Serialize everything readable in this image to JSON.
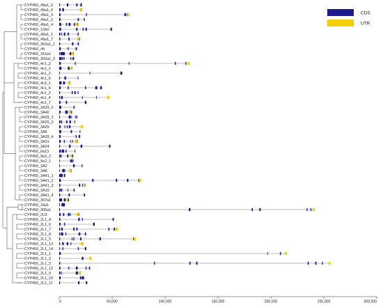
{
  "legend": [
    {
      "label": "CDS",
      "color": "#1a1a8c"
    },
    {
      "label": "UTR",
      "color": "#f5d000"
    }
  ],
  "axis": {
    "min": 0,
    "max": 300000,
    "ticks": [
      0,
      50000,
      100000,
      150000,
      200000,
      250000,
      300000
    ],
    "tick_labels": [
      "0",
      "50,000",
      "100,000",
      "150,000",
      "200,000",
      "250,000",
      "300,000"
    ]
  },
  "genes": [
    {
      "name": "CYP450_49a1_5",
      "length": 21000
    },
    {
      "name": "CYP450_49a1_6",
      "length": 21000
    },
    {
      "name": "CYP450_49a1_3",
      "length": 66000
    },
    {
      "name": "CYP450_49a1_2",
      "length": 24000
    },
    {
      "name": "CYP450_49a1_4",
      "length": 17000
    },
    {
      "name": "CYP450_12A2",
      "length": 50000
    },
    {
      "name": "CYP450_49a1_1",
      "length": 18000
    },
    {
      "name": "CYP450_49a1_7",
      "length": 19000
    },
    {
      "name": "CYP450_302a1_1",
      "length": 18000
    },
    {
      "name": "CYP450_44",
      "length": 16000
    },
    {
      "name": "CYP450_315a1",
      "length": 13000
    },
    {
      "name": "CYP450_302a1_2",
      "length": 13000
    },
    {
      "name": "CYP450_4c1_3",
      "length": 123000
    },
    {
      "name": "CYP450_4c1_1",
      "length": 12000
    },
    {
      "name": "CYP450_4c1_2",
      "length": 60000
    },
    {
      "name": "CYP450_4c1_5",
      "length": 18000
    },
    {
      "name": "CYP450_4c3_1",
      "length": 10000
    },
    {
      "name": "CYP450_4c1_6",
      "length": 40000
    },
    {
      "name": "CYP450_4c1_2",
      "length": 18000
    },
    {
      "name": "CYP450_4c1_4",
      "length": 47000
    },
    {
      "name": "CYP450_4c1_7",
      "length": 25000
    },
    {
      "name": "CYP450_3A29_2",
      "length": 14000
    },
    {
      "name": "CYP450_3A40",
      "length": 11000
    },
    {
      "name": "CYP450_3A29_1",
      "length": 17000
    },
    {
      "name": "CYP450_3A29_3",
      "length": 15000
    },
    {
      "name": "CYP450_3A25",
      "length": 22000
    },
    {
      "name": "CYP450_3A6",
      "length": 20000
    },
    {
      "name": "CYP450_3A29_4",
      "length": 19000
    },
    {
      "name": "CYP450_3A31",
      "length": 17000
    },
    {
      "name": "CYP450_3A24",
      "length": 49000
    },
    {
      "name": "CYP450_6a13",
      "length": 15000
    },
    {
      "name": "CYP450_9e2_2",
      "length": 12000
    },
    {
      "name": "CYP450_9e2_1",
      "length": 13000
    },
    {
      "name": "CYP450_3A2",
      "length": 22000
    },
    {
      "name": "CYP450_3A8",
      "length": 11000
    },
    {
      "name": "CYP450_3A41_1",
      "length": 5000
    },
    {
      "name": "CYP450_3A41_2",
      "length": 77000
    },
    {
      "name": "CYP450_3A41_3",
      "length": 24000
    },
    {
      "name": "CYP450_3A19",
      "length": 14000
    },
    {
      "name": "CYP450_3A41_4",
      "length": 24000
    },
    {
      "name": "CYP450_307a1",
      "length": 8000
    },
    {
      "name": "CYP450_18a1",
      "length": 4000
    },
    {
      "name": "CYP450_306a1",
      "length": 241000
    },
    {
      "name": "CYP450_2U1",
      "length": 18000
    },
    {
      "name": "CYP450_2L1_4",
      "length": 52000
    },
    {
      "name": "CYP450_2L1_6",
      "length": 33000
    },
    {
      "name": "CYP450_2L1_7",
      "length": 55000
    },
    {
      "name": "CYP450_2L1_8",
      "length": 25000
    },
    {
      "name": "CYP450_2L1_5",
      "length": 72000
    },
    {
      "name": "CYP450_2L1_13",
      "length": 22000
    },
    {
      "name": "CYP450_2L1_14",
      "length": 25000
    },
    {
      "name": "CYP450_2L1_1",
      "length": 215000
    },
    {
      "name": "CYP450_2L1_2",
      "length": 30000
    },
    {
      "name": "CYP450_2L1_3",
      "length": 256000
    },
    {
      "name": "CYP450_2L1_12",
      "length": 29000
    },
    {
      "name": "CYP450_2L1_9",
      "length": 20000
    },
    {
      "name": "CYP450_2L1_10",
      "length": 22000
    },
    {
      "name": "CYP450_2L1_11",
      "length": 26000
    }
  ]
}
